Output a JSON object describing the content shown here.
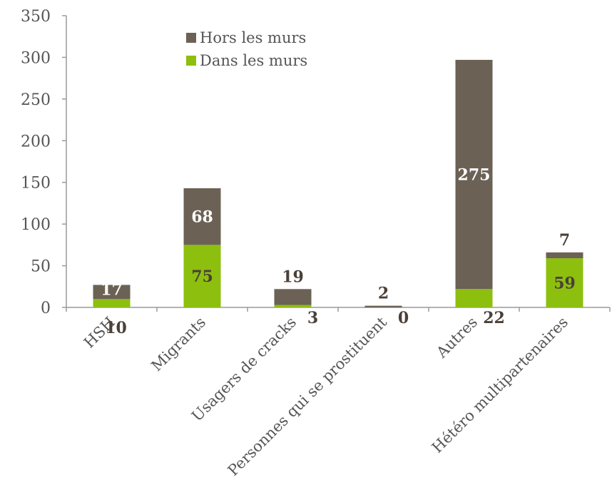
{
  "chart_data": {
    "type": "bar",
    "stacked": true,
    "categories": [
      "HSH",
      "Migrants",
      "Usagers de cracks",
      "Personnes qui se prostituent",
      "Autres",
      "Hétéro multipartenaires"
    ],
    "series": [
      {
        "name": "Dans les murs",
        "color": "#8dbf0f",
        "values": [
          10,
          75,
          3,
          0,
          22,
          59
        ]
      },
      {
        "name": "Hors les murs",
        "color": "#6b6155",
        "values": [
          17,
          68,
          19,
          2,
          275,
          7
        ]
      }
    ],
    "ylim": [
      0,
      350
    ],
    "yticks": [
      0,
      50,
      100,
      150,
      200,
      250,
      300,
      350
    ],
    "grid": false,
    "legend_position": "top-left",
    "xlabel": "",
    "ylabel": "",
    "title": ""
  }
}
